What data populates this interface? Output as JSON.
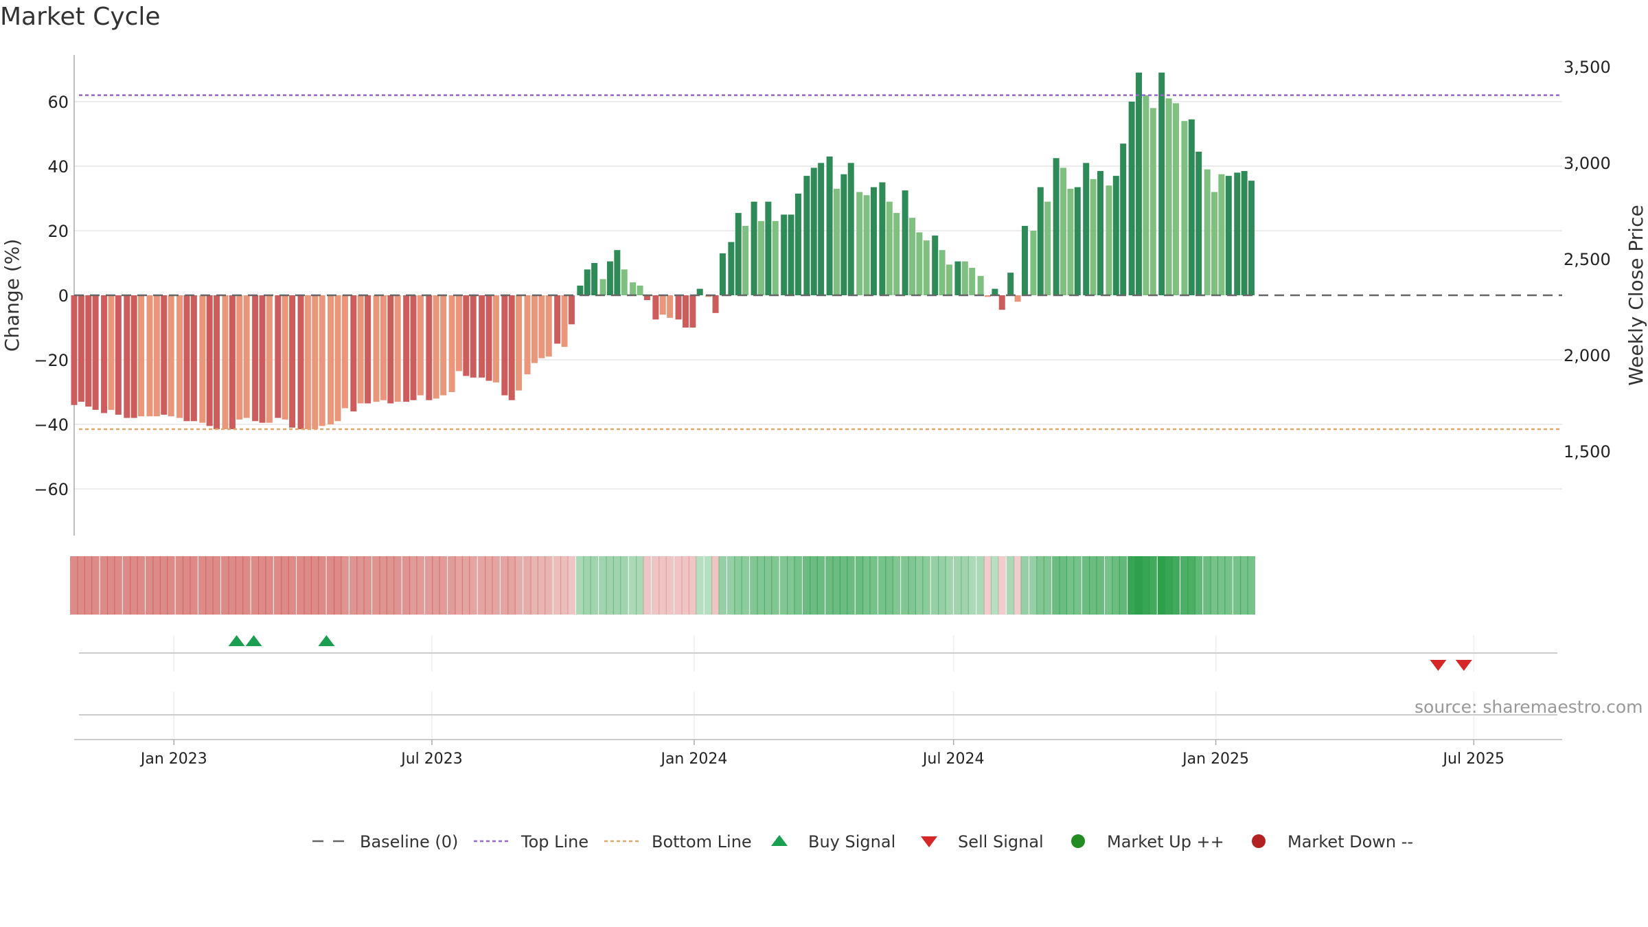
{
  "title": "Market Cycle",
  "source": "source: sharemaestro.com",
  "colors": {
    "up_dark": "#2e8b57",
    "up_light": "#7fbf7f",
    "down_dark": "#cd5c5c",
    "down_light": "#e9967a",
    "top_line": "#9966cc",
    "bottom_line": "#e0a868",
    "buy": "#1a9e50",
    "sell": "#d62728",
    "market_up": "#228b22",
    "market_down": "#b22222",
    "baseline": "#666666"
  },
  "chart_data": {
    "type": "bar",
    "title": "Market Cycle",
    "ylabel": "Change (%)",
    "y2label": "Weekly Close Price",
    "ylim": [
      -74,
      74
    ],
    "y2lim": [
      1000,
      3600
    ],
    "yticks": [
      -60,
      -40,
      -20,
      0,
      20,
      40,
      60
    ],
    "yticklabels": [
      "−60",
      "−40",
      "−20",
      "0",
      "20",
      "40",
      "60"
    ],
    "y2ticks": [
      1500,
      2000,
      2500,
      3000,
      3500
    ],
    "y2ticklabels": [
      "1,500",
      "2,000",
      "2,500",
      "3,000",
      "3,500"
    ],
    "top_line": 62,
    "bottom_line": -41.5,
    "x_start": "2022-10-23",
    "x_end": "2025-09-01",
    "x_ticks": [
      {
        "date": "2023-01-01",
        "label": "Jan 2023"
      },
      {
        "date": "2023-07-01",
        "label": "Jul 2023"
      },
      {
        "date": "2024-01-01",
        "label": "Jan 2024"
      },
      {
        "date": "2024-07-01",
        "label": "Jul 2024"
      },
      {
        "date": "2025-01-01",
        "label": "Jan 2025"
      },
      {
        "date": "2025-07-01",
        "label": "Jul 2025"
      }
    ],
    "first_week": "2022-10-23",
    "week_step_days": 5.3,
    "values": [
      -34,
      -33,
      -34.5,
      -35.5,
      -36.5,
      -35.5,
      -37,
      -38,
      -38,
      -37.5,
      -37.5,
      -37.5,
      -37,
      -37.5,
      -38,
      -39,
      -39,
      -39.5,
      -40.5,
      -41.5,
      -41.5,
      -41.5,
      -38.5,
      -38,
      -39,
      -39.5,
      -39.5,
      -38,
      -38.5,
      -41,
      -41.5,
      -41.5,
      -41.5,
      -40.5,
      -40,
      -39,
      -35,
      -36,
      -33.5,
      -33.5,
      -33,
      -32.5,
      -33.5,
      -33,
      -33,
      -32.5,
      -31,
      -32.5,
      -32,
      -31,
      -30,
      -23.5,
      -25,
      -25.5,
      -25.5,
      -26.5,
      -27,
      -31,
      -32.5,
      -29.5,
      -24.5,
      -21,
      -19.5,
      -19,
      -15,
      -16,
      -9,
      3,
      8,
      10,
      5,
      10.5,
      14,
      8,
      4,
      3,
      -1.5,
      -7.5,
      -6,
      -7,
      -7.5,
      -10,
      -10,
      2,
      -0.5,
      -5.5,
      13,
      16.5,
      25.5,
      21.5,
      29,
      23,
      29,
      23,
      25,
      25,
      31.5,
      37,
      39.5,
      41,
      43,
      33,
      37.5,
      41,
      32,
      31,
      33.5,
      35,
      29,
      25.5,
      32.5,
      24,
      19.5,
      17,
      18.5,
      14,
      9.5,
      10.5,
      10.5,
      8.5,
      6,
      -0.5,
      2,
      -4.5,
      7,
      -2,
      21.5,
      20,
      33.5,
      29,
      42.5,
      39.5,
      33,
      33.5,
      41,
      36,
      38.5,
      34,
      37,
      47,
      60,
      69,
      62,
      58,
      69,
      61,
      59.5,
      54,
      54.5,
      44.5,
      39,
      32,
      37.5,
      37,
      38,
      38.5,
      35.5
    ],
    "shade": [
      "d",
      "d",
      "d",
      "d",
      "d",
      "l",
      "d",
      "d",
      "d",
      "l",
      "l",
      "l",
      "d",
      "l",
      "l",
      "d",
      "d",
      "l",
      "d",
      "d",
      "l",
      "d",
      "l",
      "l",
      "d",
      "d",
      "l",
      "d",
      "l",
      "d",
      "d",
      "l",
      "l",
      "l",
      "l",
      "l",
      "l",
      "d",
      "l",
      "d",
      "l",
      "l",
      "d",
      "l",
      "d",
      "d",
      "l",
      "d",
      "l",
      "l",
      "l",
      "l",
      "d",
      "d",
      "d",
      "d",
      "l",
      "d",
      "d",
      "l",
      "l",
      "l",
      "l",
      "l",
      "d",
      "l",
      "d",
      "d",
      "d",
      "d",
      "l",
      "d",
      "d",
      "l",
      "l",
      "l",
      "d",
      "d",
      "l",
      "l",
      "d",
      "d",
      "d",
      "d",
      "l",
      "d",
      "d",
      "d",
      "d",
      "l",
      "d",
      "l",
      "d",
      "l",
      "d",
      "d",
      "d",
      "d",
      "d",
      "d",
      "d",
      "l",
      "d",
      "d",
      "l",
      "l",
      "d",
      "d",
      "l",
      "l",
      "d",
      "l",
      "l",
      "l",
      "d",
      "l",
      "l",
      "d",
      "l",
      "l",
      "l",
      "l",
      "d",
      "d",
      "d",
      "l",
      "d",
      "l",
      "d",
      "l",
      "d",
      "l",
      "l",
      "d",
      "d",
      "l",
      "d",
      "l",
      "d",
      "d",
      "d",
      "d",
      "l",
      "l",
      "d",
      "l",
      "l",
      "l",
      "d",
      "d",
      "l",
      "l",
      "l",
      "d",
      "d",
      "d",
      "d",
      "l"
    ],
    "cycle_strength": [
      -0.55,
      -0.55,
      -0.55,
      -0.55,
      -0.55,
      -0.55,
      -0.55,
      -0.55,
      -0.55,
      -0.55,
      -0.55,
      -0.55,
      -0.55,
      -0.55,
      -0.55,
      -0.55,
      -0.55,
      -0.55,
      -0.55,
      -0.55,
      -0.55,
      -0.55,
      -0.55,
      -0.55,
      -0.55,
      -0.55,
      -0.55,
      -0.55,
      -0.55,
      -0.55,
      -0.55,
      -0.55,
      -0.55,
      -0.55,
      -0.55,
      -0.55,
      -0.5,
      -0.5,
      -0.5,
      -0.5,
      -0.5,
      -0.5,
      -0.5,
      -0.5,
      -0.5,
      -0.45,
      -0.45,
      -0.45,
      -0.45,
      -0.45,
      -0.45,
      -0.4,
      -0.4,
      -0.4,
      -0.4,
      -0.4,
      -0.4,
      -0.4,
      -0.4,
      -0.35,
      -0.35,
      -0.3,
      -0.3,
      -0.3,
      -0.25,
      -0.25,
      -0.2,
      0.25,
      0.3,
      0.3,
      0.3,
      0.3,
      0.3,
      0.3,
      0.25,
      0.25,
      -0.2,
      -0.2,
      -0.2,
      -0.2,
      -0.2,
      -0.2,
      -0.2,
      0.2,
      0.2,
      -0.2,
      0.35,
      0.35,
      0.4,
      0.4,
      0.45,
      0.45,
      0.45,
      0.45,
      0.45,
      0.45,
      0.5,
      0.55,
      0.55,
      0.55,
      0.55,
      0.55,
      0.55,
      0.55,
      0.55,
      0.5,
      0.5,
      0.5,
      0.5,
      0.45,
      0.45,
      0.45,
      0.4,
      0.4,
      0.35,
      0.35,
      0.3,
      0.3,
      0.3,
      0.25,
      0.25,
      -0.15,
      0.2,
      -0.15,
      0.25,
      -0.15,
      0.35,
      0.35,
      0.45,
      0.45,
      0.55,
      0.55,
      0.5,
      0.5,
      0.55,
      0.55,
      0.55,
      0.5,
      0.55,
      0.6,
      0.8,
      0.9,
      0.8,
      0.75,
      0.9,
      0.8,
      0.75,
      0.7,
      0.7,
      0.6,
      0.55,
      0.5,
      0.5,
      0.5,
      0.5,
      0.5,
      0.5
    ],
    "buy_signals": [
      "2023-02-14",
      "2023-02-26",
      "2023-04-18"
    ],
    "sell_signals": [
      "2025-06-06",
      "2025-06-24"
    ]
  },
  "legend": [
    {
      "key": "baseline",
      "label": "Baseline (0)"
    },
    {
      "key": "top",
      "label": "Top Line"
    },
    {
      "key": "bottom",
      "label": "Bottom Line"
    },
    {
      "key": "buy",
      "label": "Buy Signal"
    },
    {
      "key": "sell",
      "label": "Sell Signal"
    },
    {
      "key": "up",
      "label": "Market Up ++"
    },
    {
      "key": "down",
      "label": "Market Down --"
    }
  ]
}
